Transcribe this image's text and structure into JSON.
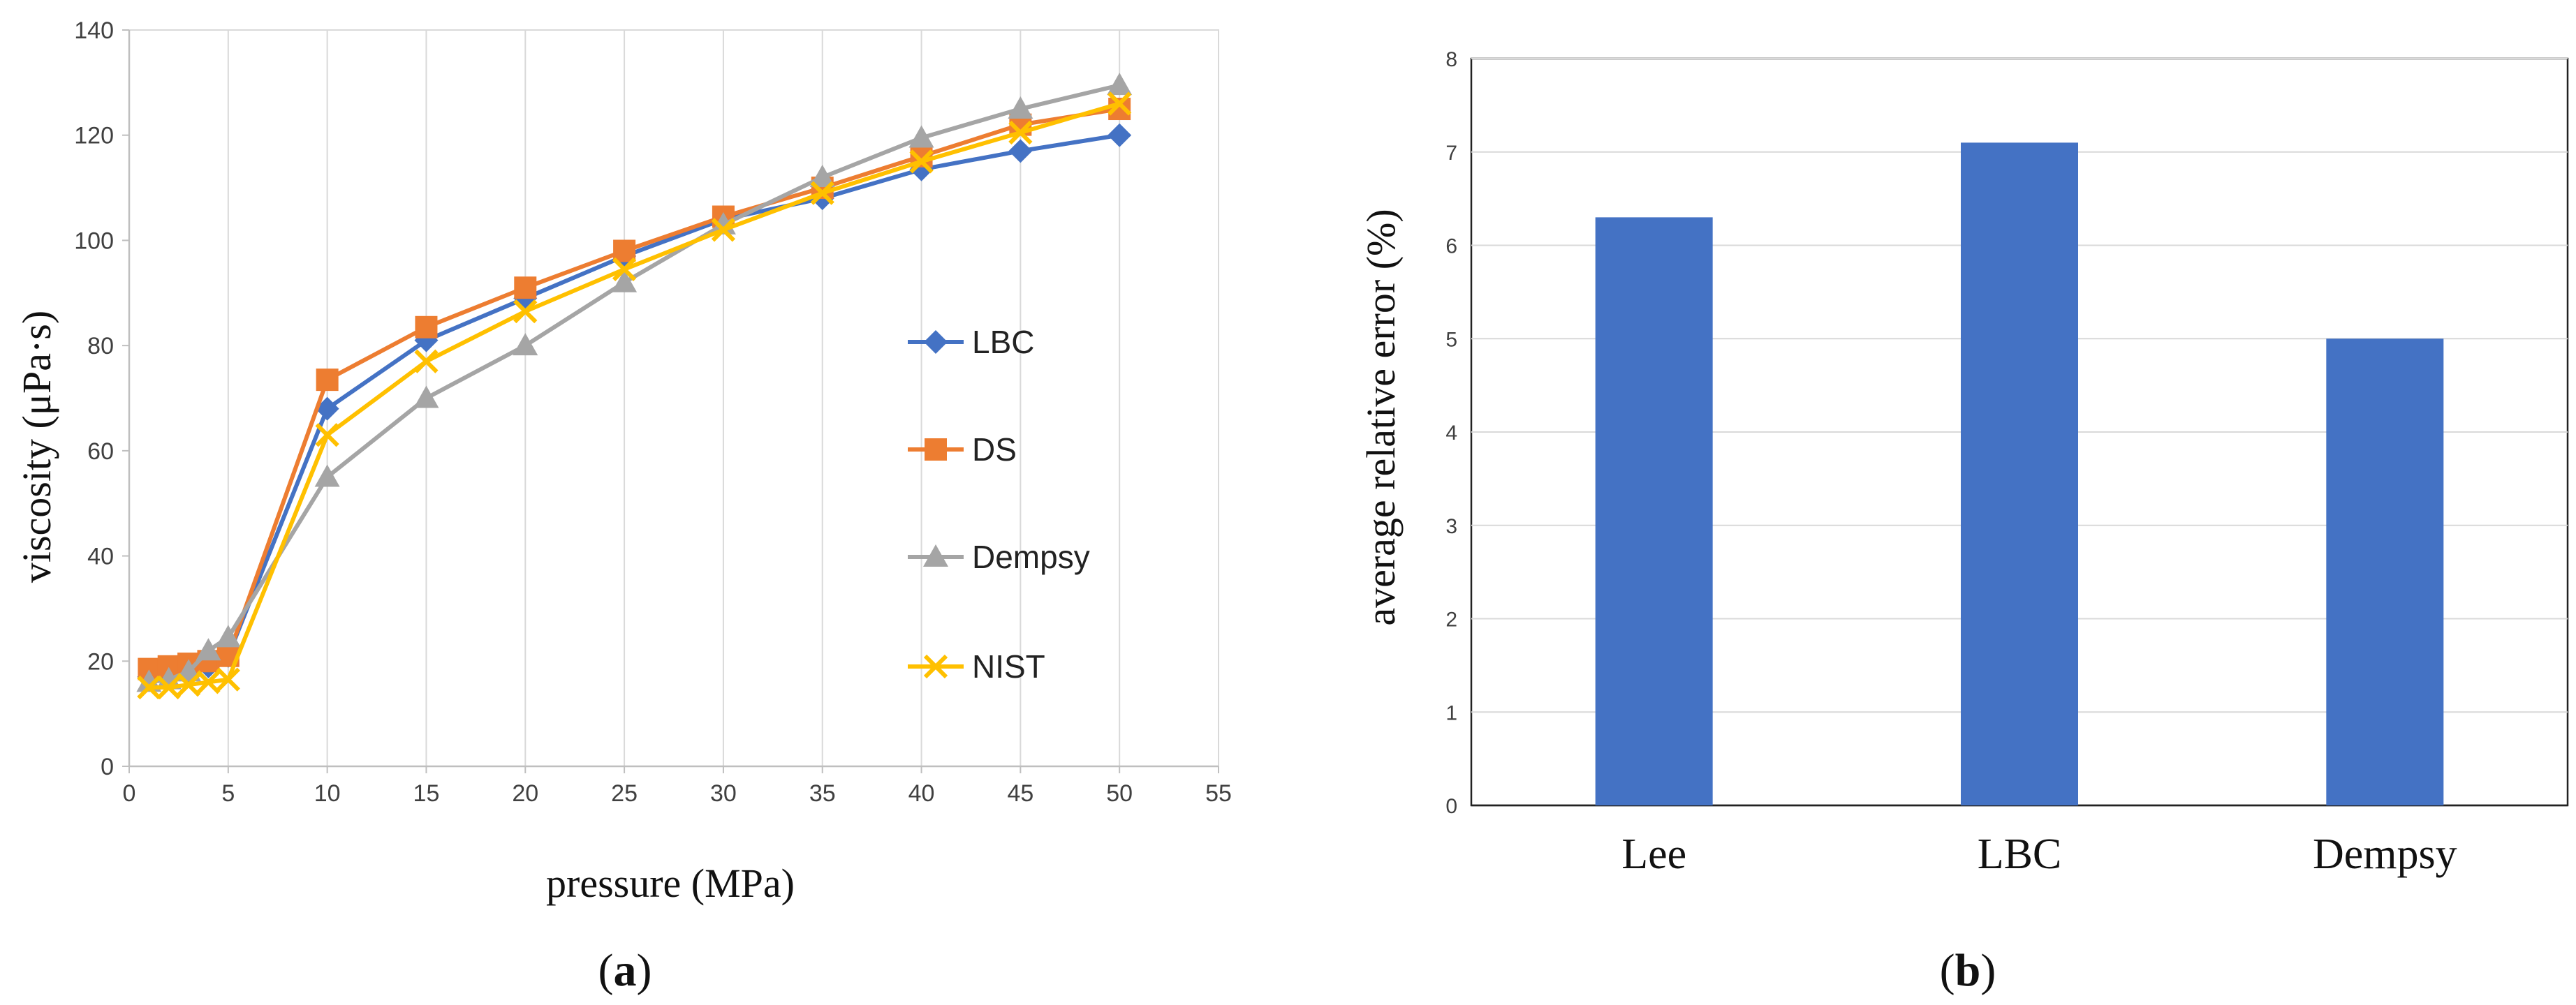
{
  "chart_data": [
    {
      "type": "line",
      "panel_label": {
        "open": "(",
        "letter": "a",
        "close": ")"
      },
      "title": "",
      "xlabel": "pressure (MPa)",
      "ylabel": "viscosity (μPa·s)",
      "xlim": [
        0,
        55
      ],
      "ylim": [
        0,
        140
      ],
      "xticks": [
        0,
        5,
        10,
        15,
        20,
        25,
        30,
        35,
        40,
        45,
        50,
        55
      ],
      "yticks": [
        0,
        20,
        40,
        60,
        80,
        100,
        120,
        140
      ],
      "grid": "vertical",
      "legend_position": "right",
      "x": [
        1,
        2,
        3,
        4,
        5,
        10,
        15,
        20,
        25,
        30,
        35,
        40,
        45,
        50
      ],
      "series": [
        {
          "name": "LBC",
          "color": "#4472C4",
          "marker": "diamond",
          "values": [
            17,
            17.5,
            18,
            19,
            21,
            68,
            81,
            89,
            97,
            104,
            108,
            113.5,
            117,
            120
          ]
        },
        {
          "name": "DS",
          "color": "#ED7D31",
          "marker": "square",
          "values": [
            18.5,
            19,
            19.5,
            20,
            21,
            73.5,
            83.5,
            91,
            98,
            104.5,
            110,
            116,
            122,
            125
          ]
        },
        {
          "name": "Dempsy",
          "color": "#A5A5A5",
          "marker": "triangle",
          "values": [
            16,
            16.5,
            18,
            22,
            24.5,
            55,
            70,
            80,
            92,
            103,
            112,
            119.5,
            125,
            129.5
          ]
        },
        {
          "name": "NIST",
          "color": "#FFC000",
          "marker": "x",
          "values": [
            15,
            15,
            15.5,
            16,
            16.5,
            63,
            77,
            86.5,
            94.5,
            102,
            109,
            115,
            120.5,
            126
          ]
        }
      ]
    },
    {
      "type": "bar",
      "panel_label": {
        "open": "(",
        "letter": "b",
        "close": ")"
      },
      "title": "",
      "xlabel": "",
      "ylabel": "average relative error (%)",
      "ylim": [
        0,
        8
      ],
      "yticks": [
        0,
        1,
        2,
        3,
        4,
        5,
        6,
        7,
        8
      ],
      "grid": "horizontal",
      "color": "#4472C4",
      "categories": [
        "Lee",
        "LBC",
        "Dempsy"
      ],
      "values": [
        6.3,
        7.1,
        5.0
      ]
    }
  ]
}
